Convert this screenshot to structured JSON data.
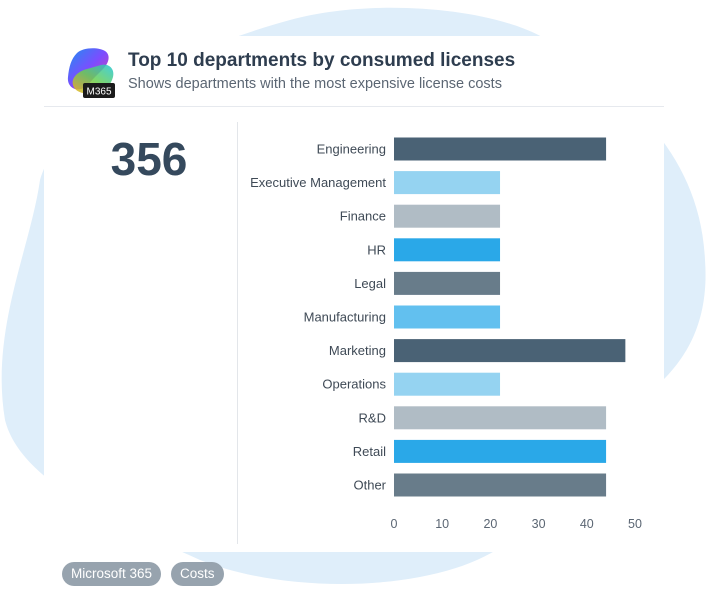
{
  "header": {
    "title": "Top 10 departments by consumed licenses",
    "subtitle": "Shows departments with the most expensive license costs",
    "logo_badge": "M365"
  },
  "kpi": {
    "value": "356"
  },
  "tags": [
    "Microsoft 365",
    "Costs"
  ],
  "chart_data": {
    "type": "bar",
    "orientation": "horizontal",
    "categories": [
      "Engineering",
      "Executive Management",
      "Finance",
      "HR",
      "Legal",
      "Manufacturing",
      "Marketing",
      "Operations",
      "R&D",
      "Retail",
      "Other"
    ],
    "values": [
      44,
      22,
      22,
      22,
      22,
      22,
      48,
      22,
      44,
      44,
      44
    ],
    "colors": [
      "#4a6275",
      "#95d3f1",
      "#b0bcc5",
      "#2aa8e8",
      "#687c8a",
      "#62c0ef",
      "#4a6275",
      "#95d3f1",
      "#b0bcc5",
      "#2aa8e8",
      "#687c8a"
    ],
    "xlim": [
      0,
      50
    ],
    "xticks": [
      0,
      10,
      20,
      30,
      40,
      50
    ],
    "grid": false,
    "legend": "none"
  }
}
